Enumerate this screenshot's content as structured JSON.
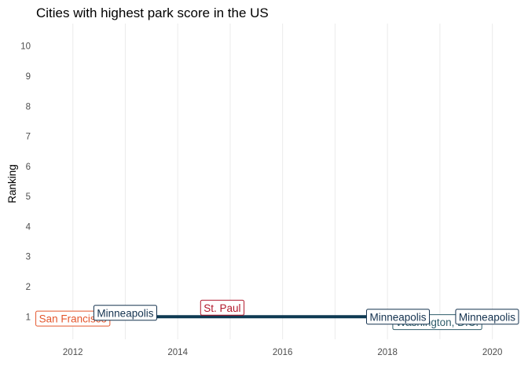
{
  "chart_data": {
    "type": "line",
    "title": "Cities with highest park score in the US",
    "xlabel": "",
    "ylabel": "Ranking",
    "x_ticks": [
      2012,
      2014,
      2016,
      2018,
      2020
    ],
    "y_ticks": [
      1,
      2,
      3,
      4,
      5,
      6,
      7,
      8,
      9,
      10
    ],
    "xlim": [
      2011.3,
      2020.5
    ],
    "ylim": [
      0.25,
      10.75
    ],
    "grid": "vertical",
    "legend": "none",
    "series": [
      {
        "x": [
          2013,
          2020
        ],
        "y": [
          1,
          1
        ],
        "color": "#0e3a53"
      }
    ],
    "annotations": [
      {
        "text": "San Francisco",
        "x": 2012,
        "y": 0.94,
        "color": "#e4572e",
        "align": "center"
      },
      {
        "text": "Minneapolis",
        "x": 2013,
        "y": 1.13,
        "color": "#14324f",
        "align": "center"
      },
      {
        "text": "St. Paul",
        "x": 2014.85,
        "y": 1.3,
        "color": "#b2182b",
        "align": "center"
      },
      {
        "text": "Washington, D.C.",
        "x": 2018.95,
        "y": 0.82,
        "color": "#2f5d6b",
        "align": "center"
      },
      {
        "text": "Minneapolis",
        "x": 2018.2,
        "y": 1.0,
        "color": "#14324f",
        "align": "center"
      },
      {
        "text": "Minneapolis",
        "x": 2019.9,
        "y": 1.0,
        "color": "#14324f",
        "align": "center"
      }
    ]
  }
}
